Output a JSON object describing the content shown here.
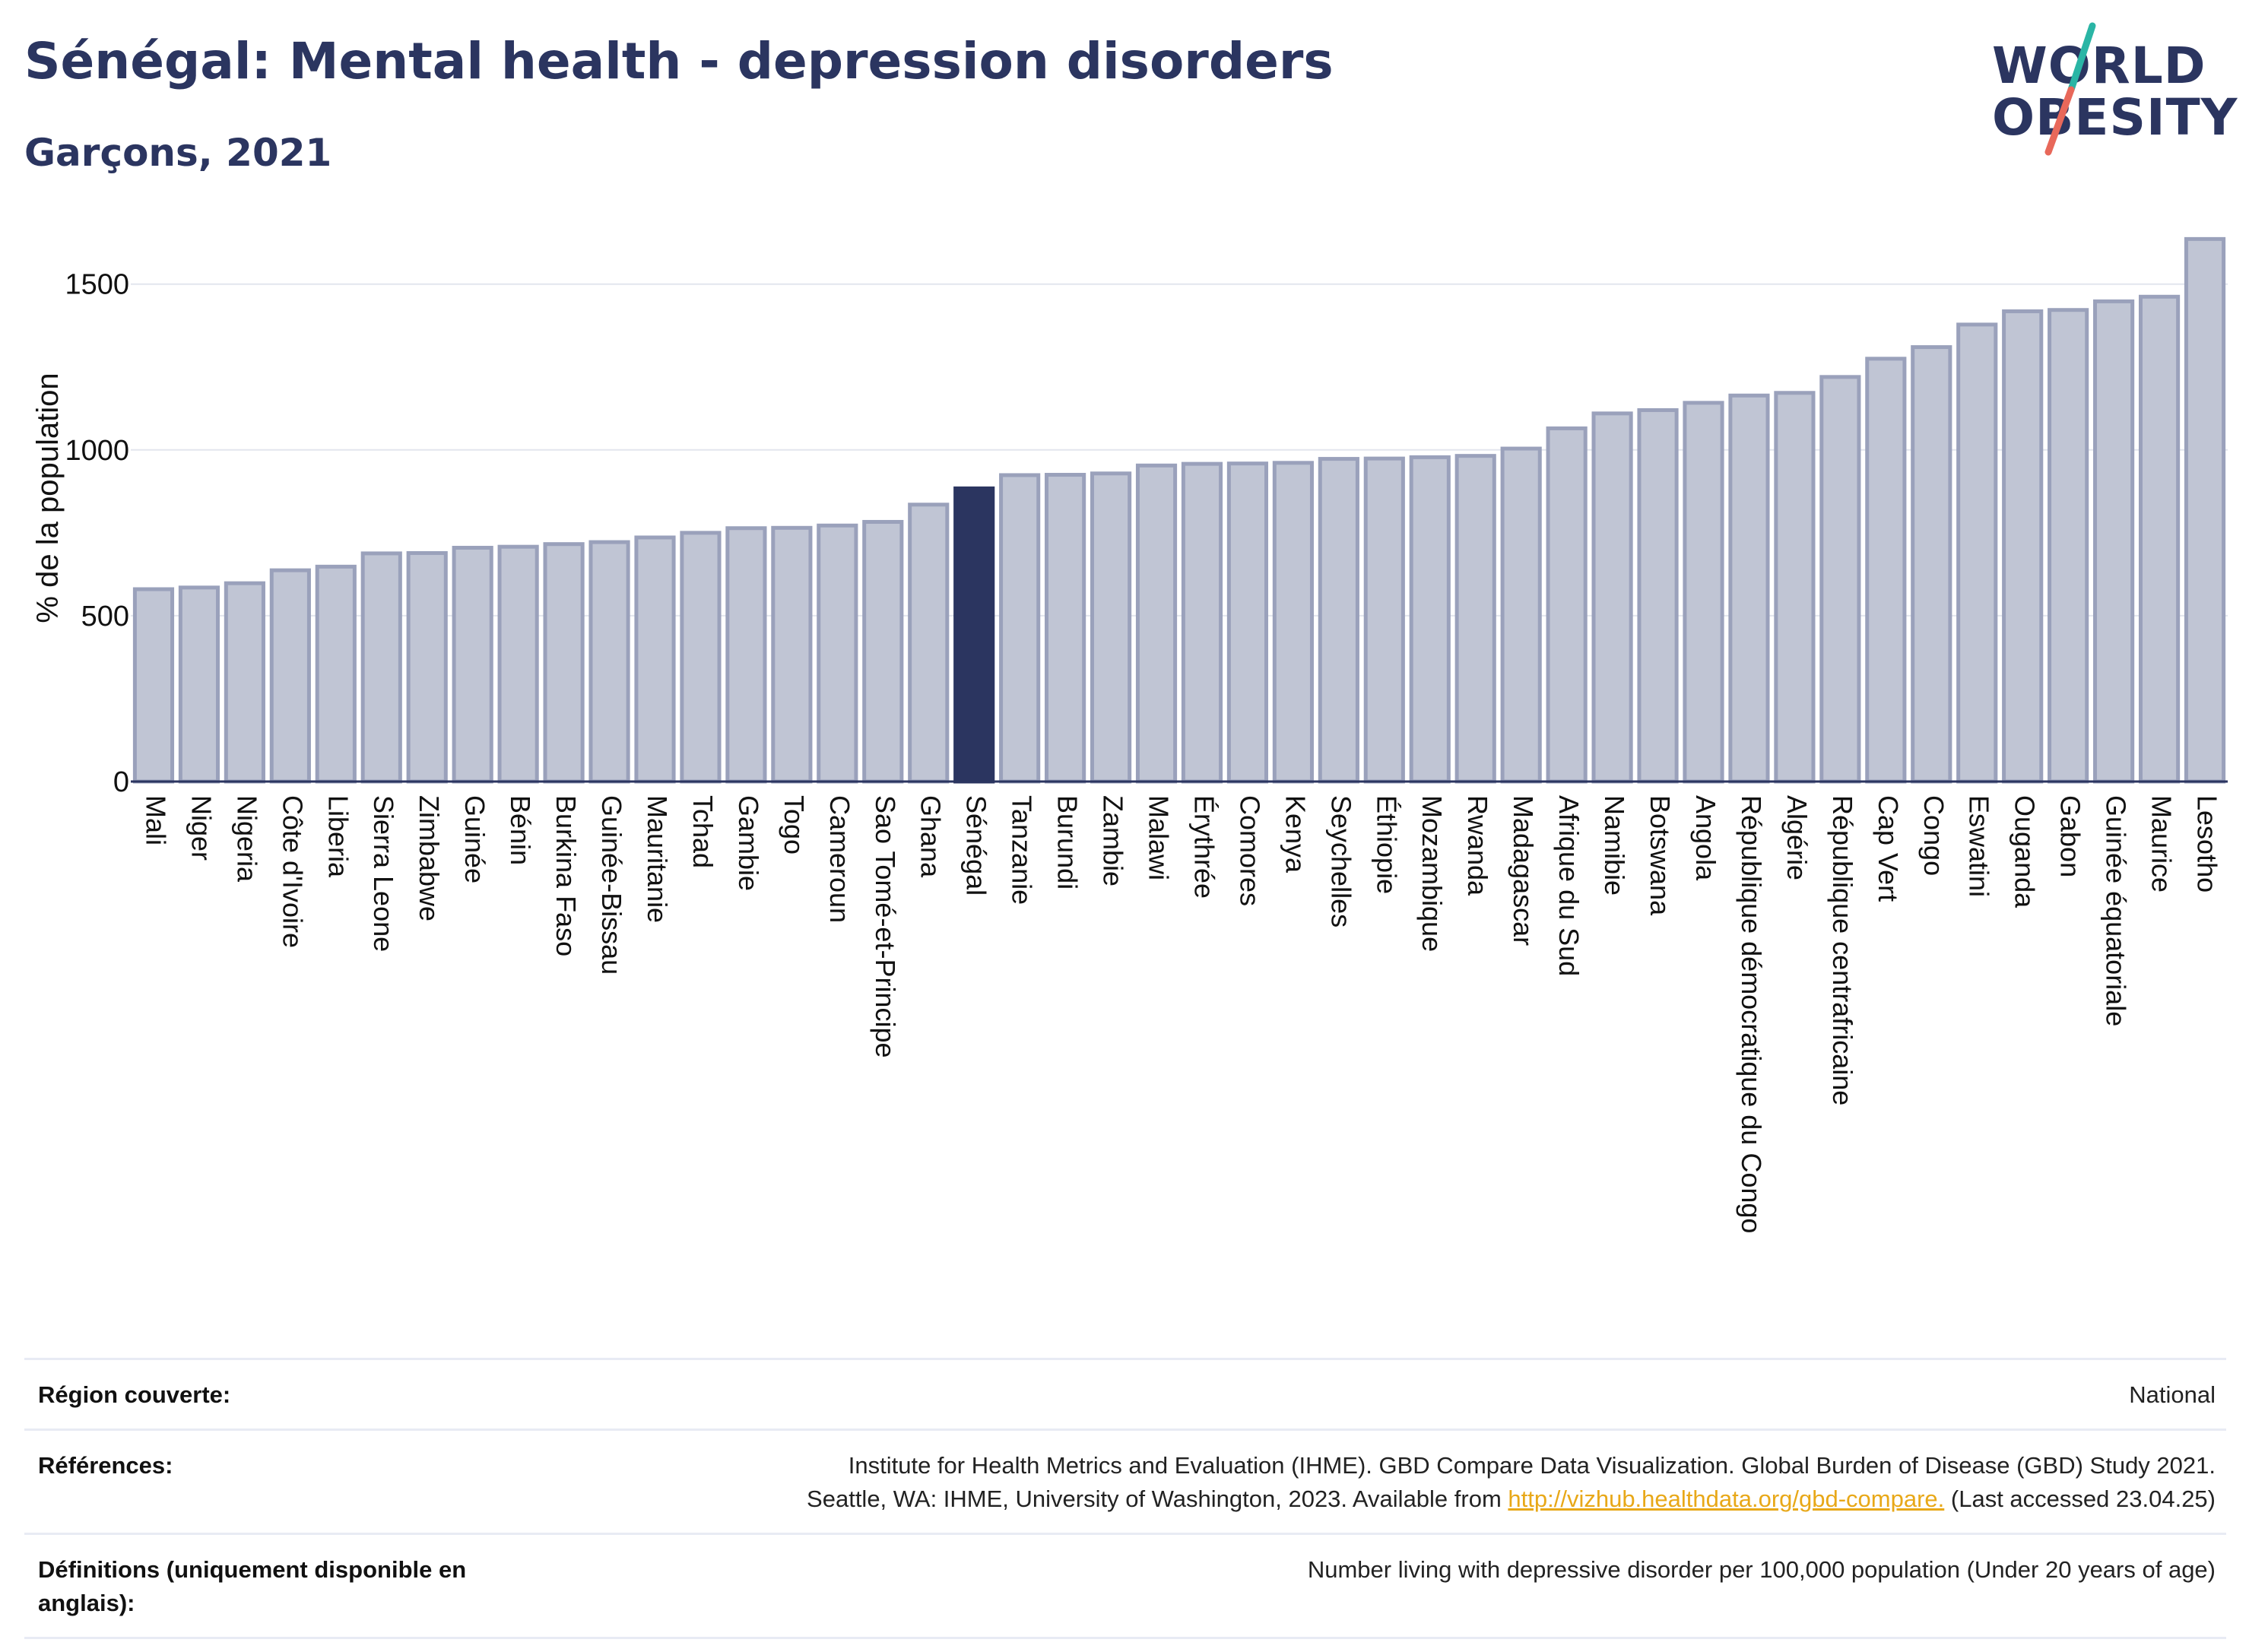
{
  "header": {
    "title": "Sénégal: Mental health - depression disorders",
    "subtitle": "Garçons, 2021"
  },
  "logo": {
    "line1": "WORLD",
    "line2": "OBESITY",
    "colors": {
      "text": "#2b3560",
      "slash_top": "#2ab5a5",
      "slash_bottom": "#e8685a"
    }
  },
  "chart_data": {
    "type": "bar",
    "title": "Sénégal: Mental health - depression disorders",
    "subtitle": "Garçons, 2021",
    "xlabel": "",
    "ylabel": "% de la population",
    "ylim": [
      0,
      1700
    ],
    "yticks": [
      0,
      500,
      1000,
      1500
    ],
    "grid": true,
    "highlight": "Sénégal",
    "colors": {
      "bar": "#c0c5d4",
      "bar_edge": "#9aa1bb",
      "highlight": "#2b3560",
      "grid": "#e3e6ee",
      "axis": "#2b3560"
    },
    "categories": [
      "Mali",
      "Niger",
      "Nigeria",
      "Côte d'Ivoire",
      "Liberia",
      "Sierra Leone",
      "Zimbabwe",
      "Guinée",
      "Bénin",
      "Burkina Faso",
      "Guinée-Bissau",
      "Mauritanie",
      "Tchad",
      "Gambie",
      "Togo",
      "Cameroun",
      "Sao Tomé-et-Principe",
      "Ghana",
      "Sénégal",
      "Tanzanie",
      "Burundi",
      "Zambie",
      "Malawi",
      "Érythrée",
      "Comores",
      "Kenya",
      "Seychelles",
      "Éthiopie",
      "Mozambique",
      "Rwanda",
      "Madagascar",
      "Afrique du Sud",
      "Namibie",
      "Botswana",
      "Angola",
      "République démocratique du Congo",
      "Algérie",
      "République centrafricaine",
      "Cap Vert",
      "Congo",
      "Eswatini",
      "Ouganda",
      "Gabon",
      "Guinée équatoriale",
      "Maurice",
      "Lesotho"
    ],
    "values": [
      580,
      585,
      598,
      637,
      648,
      688,
      689,
      705,
      708,
      716,
      722,
      736,
      750,
      764,
      765,
      772,
      783,
      835,
      884,
      924,
      925,
      929,
      953,
      958,
      959,
      961,
      973,
      974,
      978,
      982,
      1004,
      1065,
      1110,
      1120,
      1142,
      1164,
      1172,
      1220,
      1275,
      1310,
      1378,
      1418,
      1422,
      1448,
      1462,
      1636
    ]
  },
  "footer": {
    "region_label": "Région couverte:",
    "region_value": "National",
    "references_label": "Références:",
    "references_line1": "Institute for Health Metrics and Evaluation (IHME). GBD Compare Data Visualization. Global Burden of Disease (GBD) Study 2021.",
    "references_line2_prefix": "Seattle, WA: IHME, University of Washington, 2023. Available from ",
    "references_link": "http://vizhub.healthdata.org/gbd-compare.",
    "references_line2_suffix": " (Last accessed 23.04.25)",
    "definitions_label": "Définitions (uniquement disponible en anglais):",
    "definitions_value": "Number living with depressive disorder per 100,000 population (Under 20 years of age)"
  }
}
